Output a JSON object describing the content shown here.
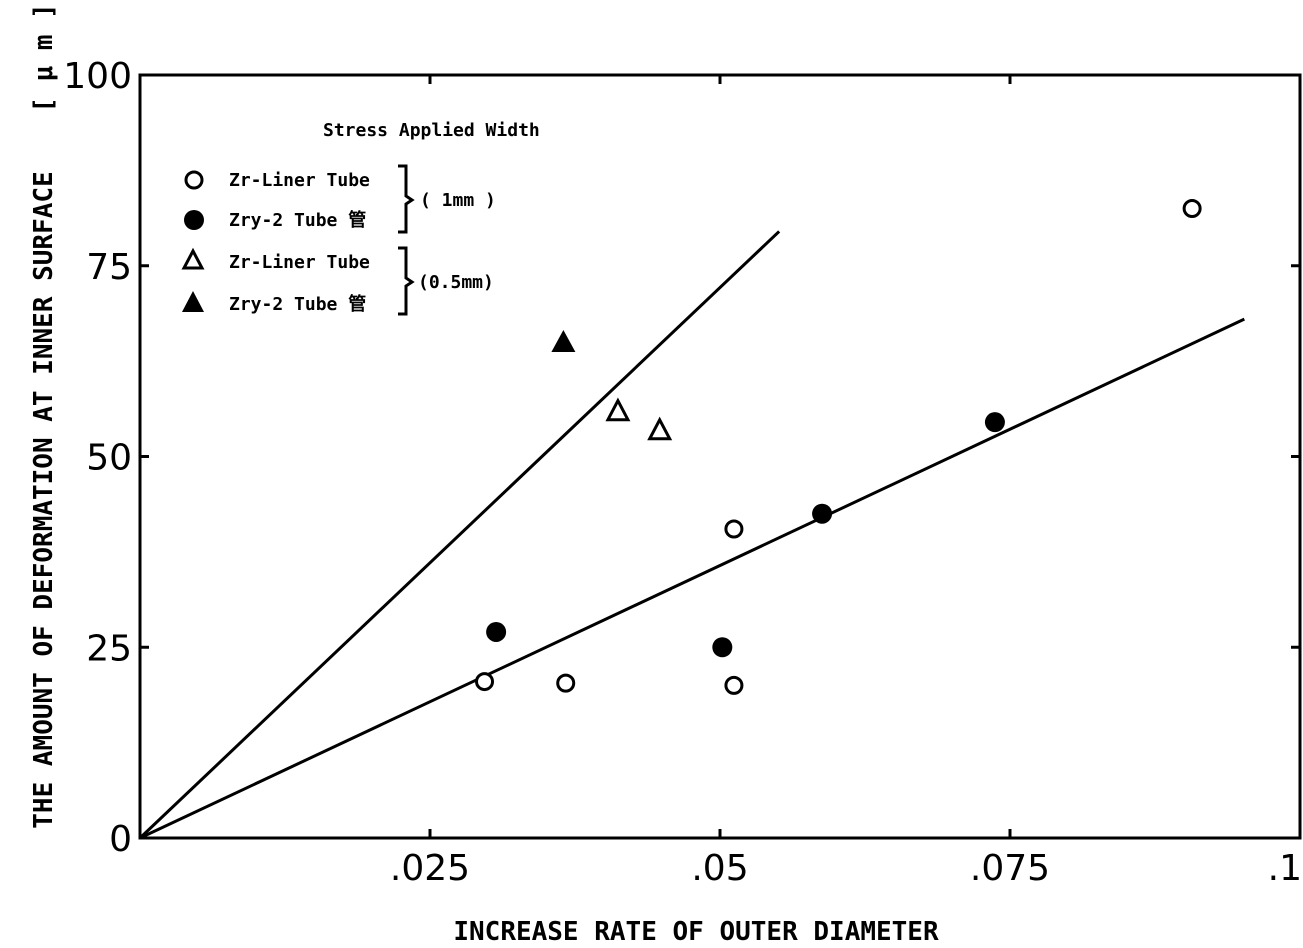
{
  "chart_data": {
    "type": "scatter",
    "xlabel": "INCREASE RATE OF OUTER DIAMETER",
    "ylabel": "THE AMOUNT OF DEFORMATION AT INNER SURFACE",
    "ylabel_unit": "[ μ m ]",
    "xlim": [
      0,
      0.1
    ],
    "ylim": [
      0,
      100
    ],
    "x_ticks": [
      {
        "value": 0.025,
        "label": ".025"
      },
      {
        "value": 0.05,
        "label": ".05"
      },
      {
        "value": 0.075,
        "label": ".075"
      },
      {
        "value": 0.1,
        "label": ".1"
      }
    ],
    "y_ticks": [
      {
        "value": 0,
        "label": "0"
      },
      {
        "value": 25,
        "label": "25"
      },
      {
        "value": 50,
        "label": "50"
      },
      {
        "value": 75,
        "label": "75"
      },
      {
        "value": 100,
        "label": "100"
      }
    ],
    "grid": false,
    "legend": {
      "position": "top-left",
      "title": "Stress Applied Width",
      "groups": [
        {
          "bracket_label": "( 1mm )",
          "entries": [
            {
              "series": 0,
              "label": "Zr-Liner Tube"
            },
            {
              "series": 1,
              "label": "Zry-2 Tube 管"
            }
          ]
        },
        {
          "bracket_label": "(0.5mm)",
          "entries": [
            {
              "series": 2,
              "label": "Zr-Liner Tube"
            },
            {
              "series": 3,
              "label": "Zry-2 Tube 管"
            }
          ]
        }
      ]
    },
    "series": [
      {
        "name": "Zr-Liner Tube",
        "marker": "circle-open",
        "points": [
          [
            0.0297,
            20.5
          ],
          [
            0.0367,
            20.3
          ],
          [
            0.0512,
            40.5
          ],
          [
            0.0512,
            20.0
          ],
          [
            0.0907,
            82.5
          ]
        ]
      },
      {
        "name": "Zry-2 Tube 管",
        "marker": "circle-filled",
        "points": [
          [
            0.0307,
            27.0
          ],
          [
            0.0502,
            25.0
          ],
          [
            0.0588,
            42.5
          ],
          [
            0.0737,
            54.5
          ]
        ]
      },
      {
        "name": "Zr-Liner Tube",
        "marker": "triangle-open",
        "points": [
          [
            0.0412,
            56.0
          ],
          [
            0.0448,
            53.5
          ]
        ]
      },
      {
        "name": "Zry-2 Tube 管",
        "marker": "triangle-filled",
        "points": [
          [
            0.0365,
            65.0
          ]
        ]
      }
    ],
    "fit_lines": [
      {
        "from": [
          0,
          0
        ],
        "to": [
          0.0551,
          79.5
        ]
      },
      {
        "from": [
          0,
          0
        ],
        "to": [
          0.0952,
          68.0
        ]
      }
    ]
  }
}
